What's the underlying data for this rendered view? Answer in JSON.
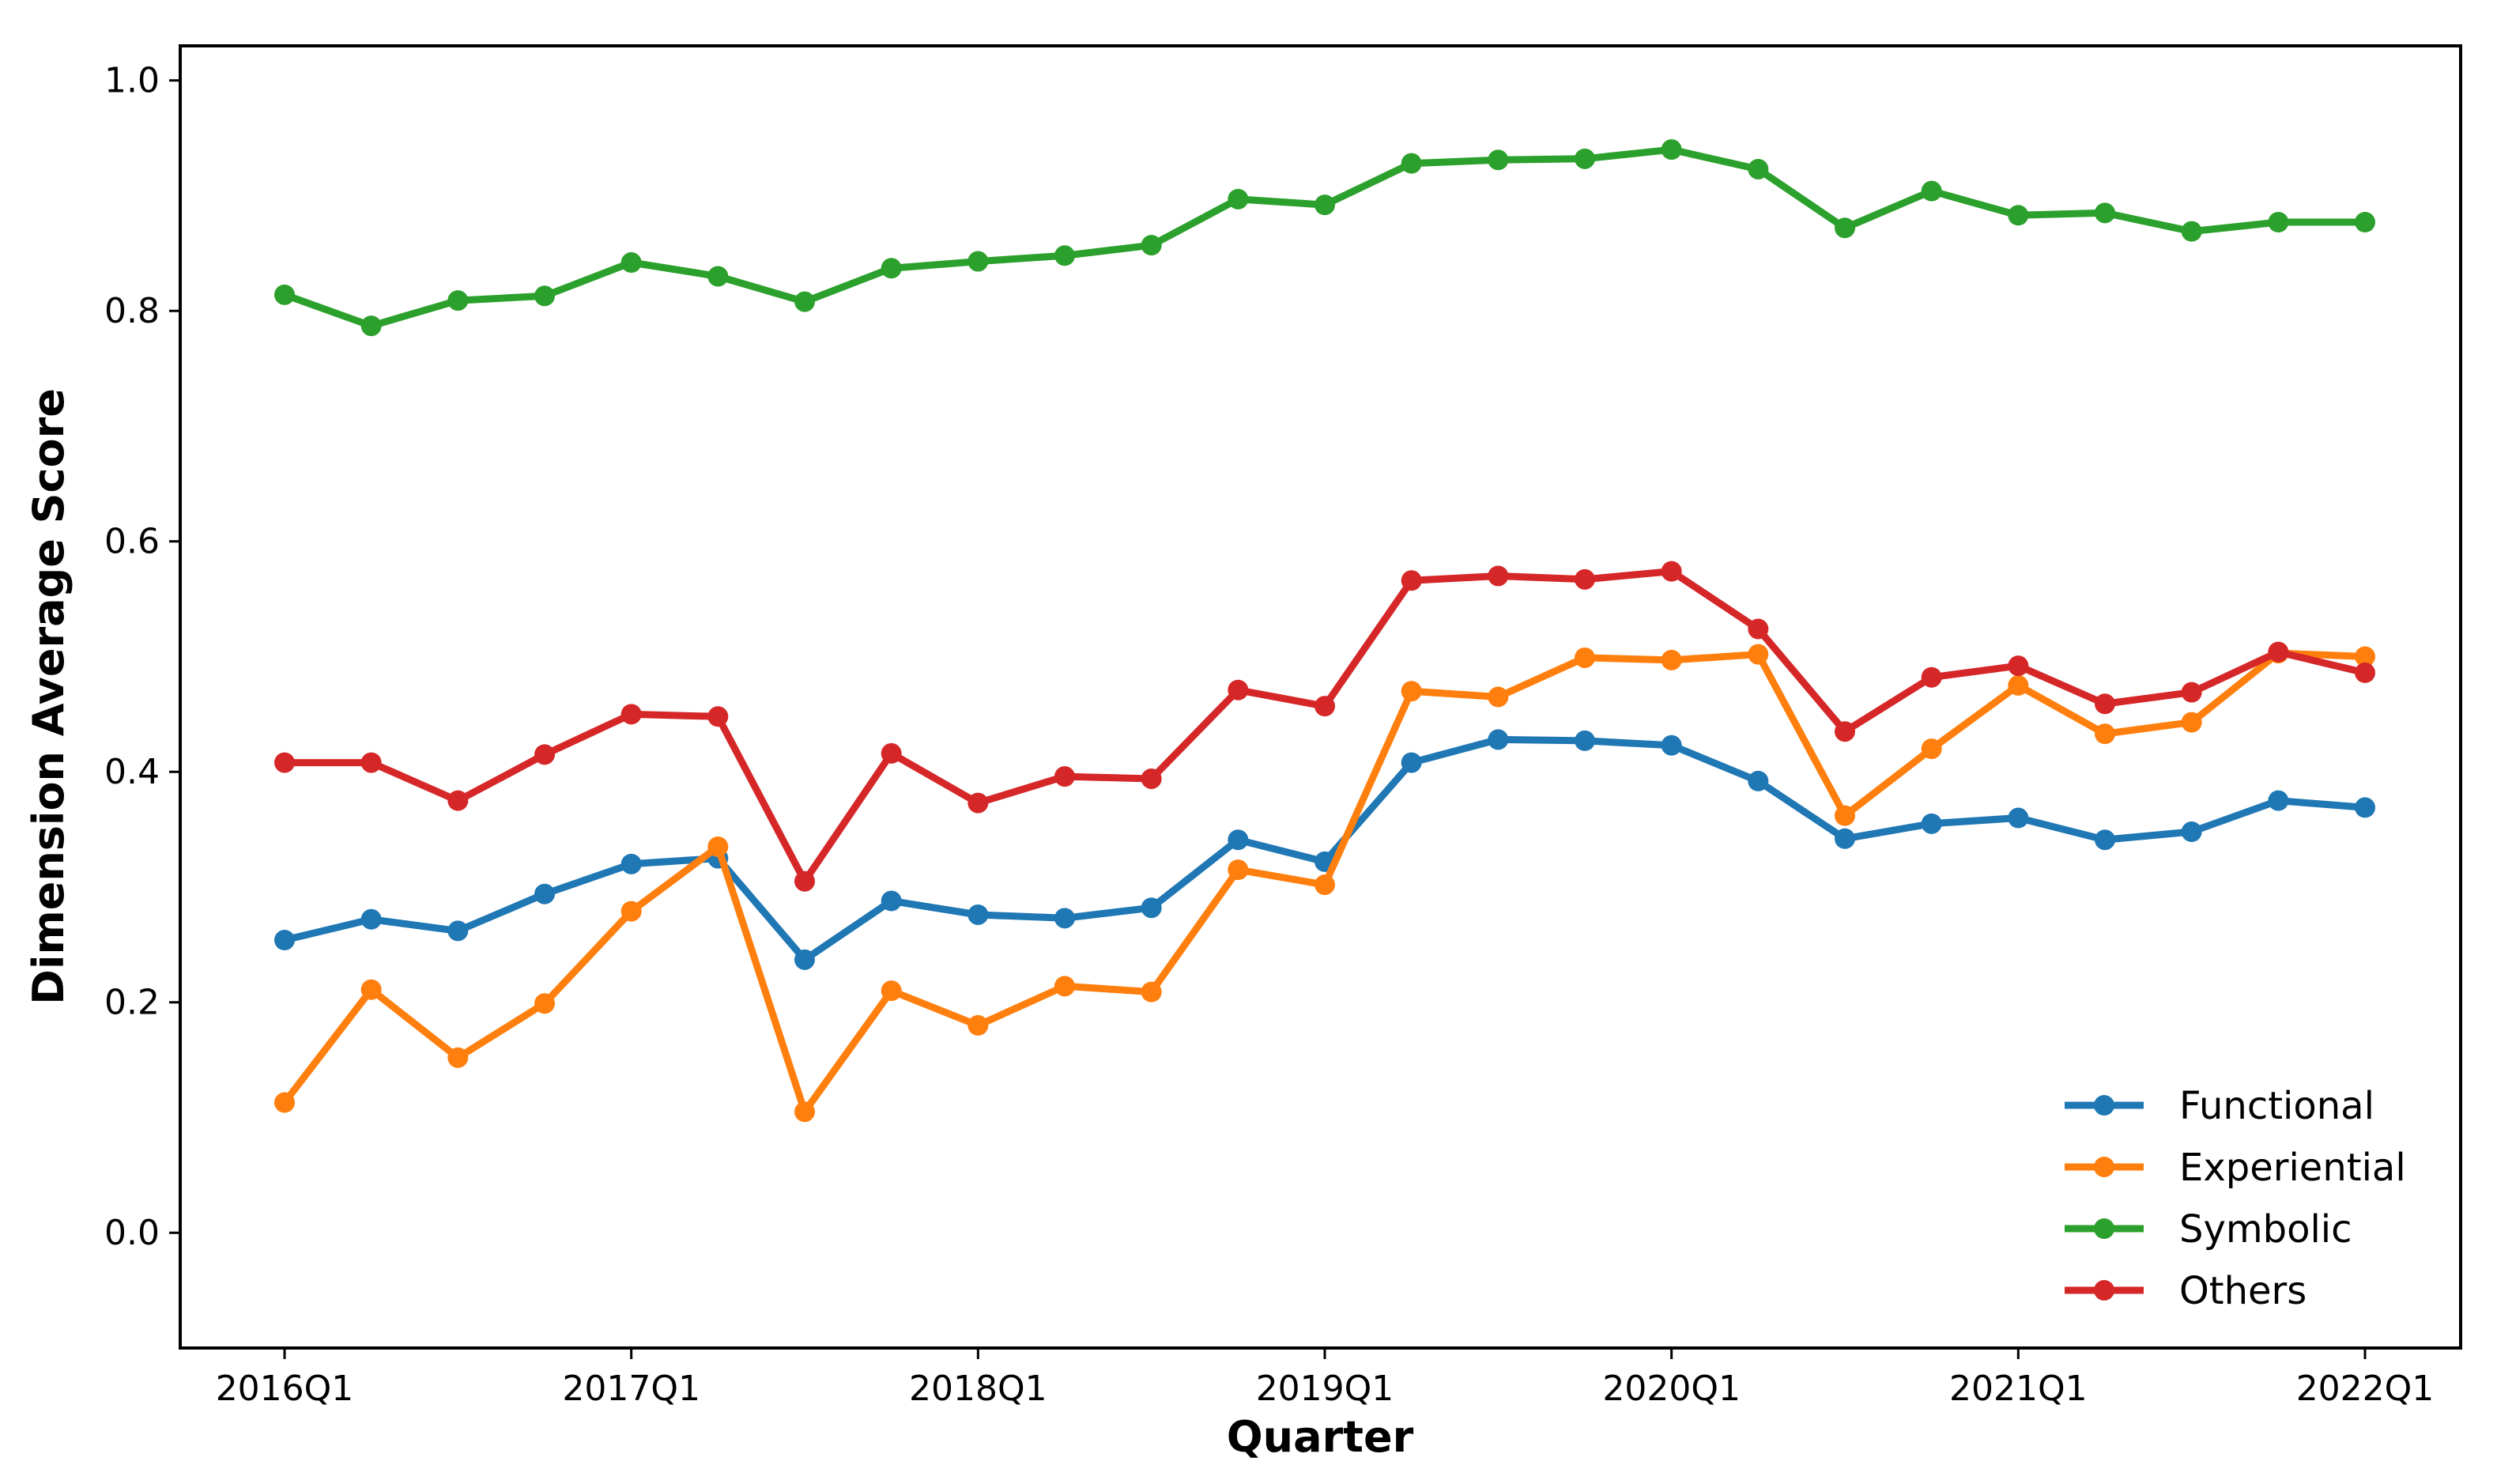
{
  "chart_data": {
    "type": "line",
    "title": "",
    "xlabel": "Quarter",
    "ylabel": "Dimension Average Score",
    "ylim": [
      -0.1,
      1.03
    ],
    "yticks": [
      "0.0",
      "0.2",
      "0.4",
      "0.6",
      "0.8",
      "1.0"
    ],
    "xtick_labels": [
      "2016Q1",
      "2017Q1",
      "2018Q1",
      "2019Q1",
      "2020Q1",
      "2021Q1",
      "2022Q1"
    ],
    "x": [
      "2016Q1",
      "2016Q2",
      "2016Q3",
      "2016Q4",
      "2017Q1",
      "2017Q2",
      "2017Q3",
      "2017Q4",
      "2018Q1",
      "2018Q2",
      "2018Q3",
      "2018Q4",
      "2019Q1",
      "2019Q2",
      "2019Q3",
      "2019Q4",
      "2020Q1",
      "2020Q2",
      "2020Q3",
      "2020Q4",
      "2021Q1",
      "2021Q2",
      "2021Q3",
      "2021Q4",
      "2022Q1"
    ],
    "grid": false,
    "legend_position": "bottom-right",
    "series": [
      {
        "name": "Functional",
        "color": "#1f77b4",
        "values": [
          0.254,
          0.272,
          0.262,
          0.294,
          0.32,
          0.325,
          0.237,
          0.288,
          0.276,
          0.273,
          0.282,
          0.341,
          0.322,
          0.408,
          0.428,
          0.427,
          0.423,
          0.392,
          0.342,
          0.355,
          0.36,
          0.341,
          0.348,
          0.375,
          0.369
        ]
      },
      {
        "name": "Experiential",
        "color": "#ff7f0e",
        "values": [
          0.113,
          0.211,
          0.152,
          0.199,
          0.279,
          0.335,
          0.105,
          0.21,
          0.18,
          0.214,
          0.209,
          0.315,
          0.302,
          0.47,
          0.465,
          0.499,
          0.497,
          0.502,
          0.362,
          0.42,
          0.475,
          0.433,
          0.443,
          0.503,
          0.5
        ]
      },
      {
        "name": "Symbolic",
        "color": "#2ca02c",
        "values": [
          0.814,
          0.787,
          0.809,
          0.813,
          0.842,
          0.83,
          0.808,
          0.837,
          0.843,
          0.848,
          0.857,
          0.897,
          0.892,
          0.928,
          0.931,
          0.932,
          0.94,
          0.923,
          0.872,
          0.904,
          0.883,
          0.885,
          0.869,
          0.877,
          0.877
        ]
      },
      {
        "name": "Others",
        "color": "#d62728",
        "values": [
          0.408,
          0.408,
          0.375,
          0.415,
          0.45,
          0.448,
          0.305,
          0.416,
          0.373,
          0.396,
          0.394,
          0.471,
          0.457,
          0.566,
          0.57,
          0.567,
          0.574,
          0.524,
          0.435,
          0.482,
          0.492,
          0.459,
          0.469,
          0.504,
          0.486
        ]
      }
    ]
  }
}
